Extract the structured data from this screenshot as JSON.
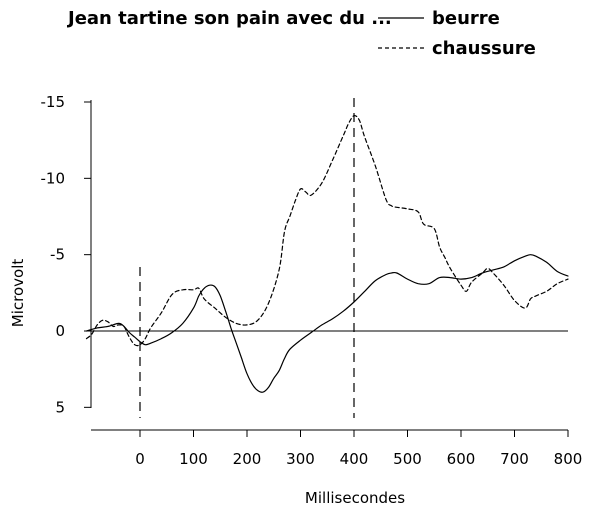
{
  "chart_data": {
    "type": "line",
    "title": "Jean tartine son pain avec du ...",
    "xlabel": "Millisecondes",
    "ylabel": "Microvolt",
    "xlim": [
      -100,
      800
    ],
    "ylim": [
      5,
      -15
    ],
    "y_inverted": true,
    "x_ticks": [
      0,
      100,
      200,
      300,
      400,
      500,
      600,
      700,
      800
    ],
    "y_ticks": [
      -15,
      -10,
      -5,
      0,
      5
    ],
    "x_tick_labels": [
      "0",
      "100",
      "200",
      "300",
      "400",
      "500",
      "600",
      "700",
      "800"
    ],
    "y_tick_labels": [
      "-15",
      "-10",
      "-5",
      "0",
      "5"
    ],
    "reference_line_y": 0,
    "vertical_markers_x": [
      0,
      400
    ],
    "legend_placement": "top-right",
    "series": [
      {
        "name": "beurre",
        "style": "solid",
        "points": [
          [
            -100,
            0
          ],
          [
            -80,
            -0.2
          ],
          [
            -60,
            -0.3
          ],
          [
            -40,
            -0.5
          ],
          [
            -30,
            -0.3
          ],
          [
            -20,
            0.1
          ],
          [
            -10,
            0.4
          ],
          [
            0,
            0.7
          ],
          [
            10,
            0.9
          ],
          [
            20,
            0.8
          ],
          [
            40,
            0.5
          ],
          [
            60,
            0.1
          ],
          [
            80,
            -0.5
          ],
          [
            100,
            -1.5
          ],
          [
            110,
            -2.3
          ],
          [
            120,
            -2.8
          ],
          [
            130,
            -3.0
          ],
          [
            140,
            -2.9
          ],
          [
            150,
            -2.3
          ],
          [
            160,
            -1.3
          ],
          [
            170,
            -0.2
          ],
          [
            180,
            0.8
          ],
          [
            190,
            1.8
          ],
          [
            200,
            2.8
          ],
          [
            210,
            3.5
          ],
          [
            220,
            3.9
          ],
          [
            230,
            4.0
          ],
          [
            240,
            3.7
          ],
          [
            250,
            3.1
          ],
          [
            260,
            2.6
          ],
          [
            270,
            1.8
          ],
          [
            280,
            1.2
          ],
          [
            300,
            0.6
          ],
          [
            320,
            0.1
          ],
          [
            340,
            -0.4
          ],
          [
            360,
            -0.8
          ],
          [
            380,
            -1.3
          ],
          [
            400,
            -1.9
          ],
          [
            420,
            -2.6
          ],
          [
            440,
            -3.3
          ],
          [
            460,
            -3.7
          ],
          [
            470,
            -3.8
          ],
          [
            480,
            -3.8
          ],
          [
            500,
            -3.4
          ],
          [
            520,
            -3.1
          ],
          [
            540,
            -3.1
          ],
          [
            560,
            -3.5
          ],
          [
            580,
            -3.5
          ],
          [
            600,
            -3.4
          ],
          [
            620,
            -3.5
          ],
          [
            640,
            -3.8
          ],
          [
            660,
            -4.0
          ],
          [
            680,
            -4.2
          ],
          [
            700,
            -4.6
          ],
          [
            720,
            -4.9
          ],
          [
            730,
            -5.0
          ],
          [
            740,
            -4.9
          ],
          [
            760,
            -4.5
          ],
          [
            780,
            -3.9
          ],
          [
            800,
            -3.6
          ]
        ]
      },
      {
        "name": "chaussure",
        "style": "dashed",
        "points": [
          [
            -100,
            0.5
          ],
          [
            -90,
            0.2
          ],
          [
            -80,
            -0.4
          ],
          [
            -70,
            -0.7
          ],
          [
            -60,
            -0.6
          ],
          [
            -50,
            -0.3
          ],
          [
            -40,
            -0.4
          ],
          [
            -30,
            -0.3
          ],
          [
            -20,
            0.4
          ],
          [
            -10,
            0.9
          ],
          [
            0,
            0.9
          ],
          [
            10,
            0.5
          ],
          [
            20,
            -0.2
          ],
          [
            40,
            -1.2
          ],
          [
            60,
            -2.4
          ],
          [
            80,
            -2.7
          ],
          [
            100,
            -2.7
          ],
          [
            110,
            -2.8
          ],
          [
            120,
            -2.1
          ],
          [
            140,
            -1.5
          ],
          [
            160,
            -0.9
          ],
          [
            180,
            -0.5
          ],
          [
            200,
            -0.4
          ],
          [
            220,
            -0.7
          ],
          [
            240,
            -1.8
          ],
          [
            260,
            -4.0
          ],
          [
            270,
            -6.5
          ],
          [
            280,
            -7.5
          ],
          [
            290,
            -8.5
          ],
          [
            300,
            -9.3
          ],
          [
            310,
            -9.1
          ],
          [
            320,
            -8.9
          ],
          [
            340,
            -9.7
          ],
          [
            360,
            -11.2
          ],
          [
            380,
            -12.8
          ],
          [
            390,
            -13.6
          ],
          [
            400,
            -14.1
          ],
          [
            410,
            -13.8
          ],
          [
            420,
            -12.7
          ],
          [
            440,
            -10.8
          ],
          [
            460,
            -8.6
          ],
          [
            470,
            -8.2
          ],
          [
            480,
            -8.1
          ],
          [
            500,
            -8.0
          ],
          [
            520,
            -7.8
          ],
          [
            530,
            -7.0
          ],
          [
            550,
            -6.7
          ],
          [
            560,
            -5.5
          ],
          [
            570,
            -4.8
          ],
          [
            580,
            -4.1
          ],
          [
            600,
            -3.0
          ],
          [
            610,
            -2.6
          ],
          [
            620,
            -3.2
          ],
          [
            640,
            -3.8
          ],
          [
            650,
            -4.1
          ],
          [
            660,
            -3.8
          ],
          [
            680,
            -3.0
          ],
          [
            700,
            -2.0
          ],
          [
            720,
            -1.5
          ],
          [
            730,
            -2.1
          ],
          [
            740,
            -2.3
          ],
          [
            760,
            -2.6
          ],
          [
            780,
            -3.1
          ],
          [
            800,
            -3.4
          ]
        ]
      }
    ]
  }
}
